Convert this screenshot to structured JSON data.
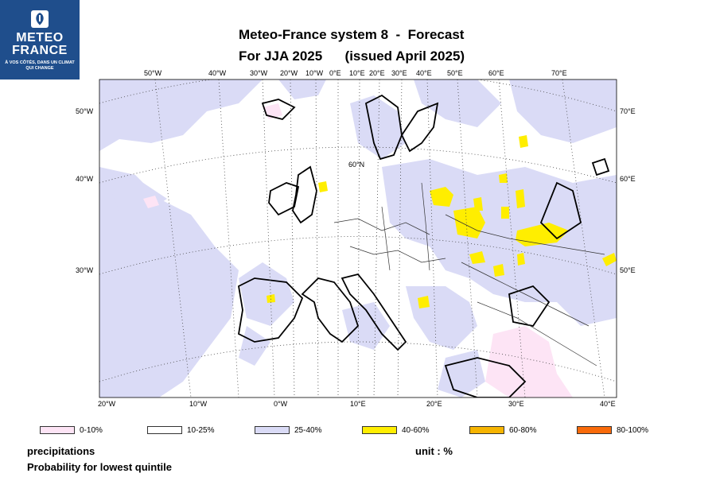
{
  "logo": {
    "line1": "METEO",
    "line2": "FRANCE",
    "tagline": "À VOS CÔTÉS, DANS UN CLIMAT QUI CHANGE"
  },
  "title": {
    "line1": "Meteo-France system 8  -  Forecast",
    "line2": "For JJA 2025      (issued April 2025)"
  },
  "map": {
    "top_lon_labels": [
      "50°W",
      "40°W",
      "30°W",
      "20°W",
      "10°W",
      "0°E",
      "10°E",
      "20°E",
      "30°E",
      "40°E",
      "50°E",
      "60°E",
      "70°E"
    ],
    "bottom_lon_labels": [
      "20°W",
      "10°W",
      "0°W",
      "10°E",
      "20°E",
      "30°E",
      "40°E"
    ],
    "left_labels": [
      "50°W",
      "40°W",
      "30°W"
    ],
    "right_labels": [
      "70°E",
      "60°E",
      "50°E"
    ],
    "inner_label": "60°N"
  },
  "legend": [
    {
      "label": "0-10%",
      "color": "#fde4f5"
    },
    {
      "label": "10-25%",
      "color": "#ffffff"
    },
    {
      "label": "25-40%",
      "color": "#dadbf6"
    },
    {
      "label": "40-60%",
      "color": "#ffee00"
    },
    {
      "label": "60-80%",
      "color": "#f6b400"
    },
    {
      "label": "80-100%",
      "color": "#f96a0a"
    }
  ],
  "footer": {
    "variable": "precipitations",
    "description": "Probability for lowest quintile",
    "unit": "unit : %"
  }
}
